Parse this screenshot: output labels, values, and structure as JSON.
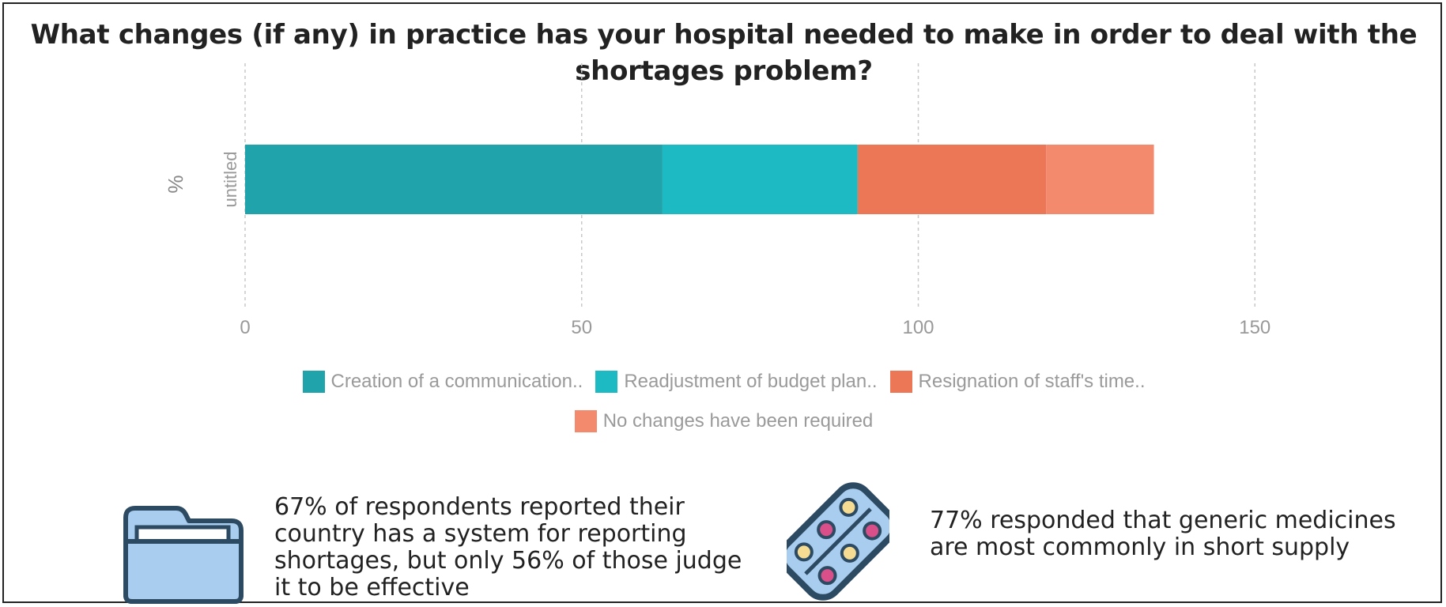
{
  "chart_data": {
    "type": "bar",
    "orientation": "horizontal",
    "stacked": true,
    "title": "What changes (if any) in practice has your hospital needed to make in order to deal with the shortages problem?",
    "ylabel": "%",
    "categories": [
      "untitled"
    ],
    "series": [
      {
        "name": "Creation of a communication..",
        "values": [
          62
        ],
        "color": "#21a3ab"
      },
      {
        "name": "Readjustment of budget plan..",
        "values": [
          29
        ],
        "color": "#1ebac3"
      },
      {
        "name": "Resignation of staff's time..",
        "values": [
          28
        ],
        "color": "#eb7757"
      },
      {
        "name": "No changes have been required",
        "values": [
          16
        ],
        "color": "#f38a6e"
      }
    ],
    "xlim": [
      0,
      165
    ],
    "xticks": [
      "0",
      "50",
      "100",
      "150"
    ],
    "grid": true,
    "legend_position": "bottom"
  },
  "infographics": [
    {
      "icon": "folder-icon",
      "text": "67% of respondents reported their country has a system for reporting shortages, but only 56% of those judge it to be effective"
    },
    {
      "icon": "pills-icon",
      "text": "77% responded that generic medicines are most commonly in short supply"
    }
  ]
}
